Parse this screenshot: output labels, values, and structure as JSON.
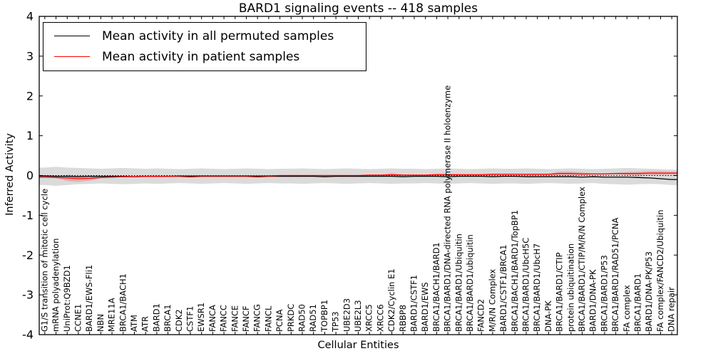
{
  "chart_data": {
    "type": "line",
    "title": "BARD1 signaling events -- 418 samples",
    "xlabel": "Cellular Entities",
    "ylabel": "Inferred Activity",
    "ylim": [
      -4,
      4
    ],
    "yticks": [
      4,
      3,
      2,
      1,
      0,
      -1,
      -2,
      -3,
      -4
    ],
    "grid": false,
    "zero_line": {
      "style": "dotted",
      "color": "#000000",
      "y": 0
    },
    "legend": {
      "position": "upper left",
      "entries": [
        {
          "label": "Mean activity in all permuted samples",
          "color": "#000000"
        },
        {
          "label": "Mean activity in patient samples",
          "color": "#ff0000"
        }
      ]
    },
    "categories": [
      "G1/S transition of mitotic cell cycle",
      "mRNA polyadenylation",
      "UniProt:Q9BZD1",
      "CCNE1",
      "BARD1/EWS-Fli1",
      "NBN",
      "MRE11A",
      "BRCA1/BACH1",
      "ATM",
      "ATR",
      "BARD1",
      "BRCA1",
      "CDK2",
      "CSTF1",
      "EWSR1",
      "FANCA",
      "FANCC",
      "FANCE",
      "FANCF",
      "FANCG",
      "FANCL",
      "PCNA",
      "PRKDC",
      "RAD50",
      "RAD51",
      "TOPBP1",
      "TP53",
      "UBE2D3",
      "UBE2L3",
      "XRCC5",
      "XRCC6",
      "CDK2/Cyclin E1",
      "RBBP8",
      "BARD1/CSTF1",
      "BARD1/EWS",
      "BRCA1/BACH1/BARD1",
      "BRCA1/BARD1/DNA-directed RNA polymerase II holoenzyme",
      "BRCA1/BARD1/Ubiquitin",
      "BRCA1/BARD1/ubiquitin",
      "FANCD2",
      "M/R/N Complex",
      "BARD1/CSTF1/BRCA1",
      "BRCA1/BACH1/BARD1/TopBP1",
      "BRCA1/BARD1/UbcH5C",
      "BRCA1/BARD1/UbcH7",
      "DNA-PK",
      "BRCA1/BARD1/CTIP",
      "protein ubiquitination",
      "BRCA1/BARD1/CTIP/M/R/N Complex",
      "BARD1/DNA-PK",
      "BRCA1/BARD1/P53",
      "BRCA1/BARD1/RAD51/PCNA",
      "FA complex",
      "BRCA1/BARD1",
      "BARD1/DNA-PK/P53",
      "FA complex/FANCD2/Ubiquitin",
      "DNA repair"
    ],
    "series": [
      {
        "name": "Mean activity in all permuted samples",
        "color": "#000000",
        "values": [
          -0.01,
          -0.02,
          -0.02,
          -0.03,
          -0.02,
          -0.02,
          -0.02,
          -0.02,
          -0.03,
          -0.02,
          -0.02,
          -0.02,
          -0.02,
          -0.03,
          -0.02,
          -0.02,
          -0.02,
          -0.02,
          -0.02,
          -0.03,
          -0.02,
          -0.02,
          -0.02,
          -0.02,
          -0.02,
          -0.03,
          -0.02,
          -0.02,
          -0.02,
          -0.02,
          -0.02,
          -0.02,
          -0.03,
          -0.02,
          -0.02,
          -0.02,
          -0.03,
          -0.02,
          -0.02,
          -0.02,
          -0.03,
          -0.02,
          -0.02,
          -0.03,
          -0.03,
          -0.03,
          -0.03,
          -0.03,
          -0.04,
          -0.03,
          -0.04,
          -0.04,
          -0.04,
          -0.05,
          -0.06,
          -0.08,
          -0.1
        ]
      },
      {
        "name": "Mean activity in patient samples",
        "color": "#ff0000",
        "values": [
          -0.04,
          -0.05,
          -0.06,
          -0.08,
          -0.07,
          -0.05,
          -0.04,
          -0.03,
          -0.03,
          -0.02,
          -0.02,
          -0.02,
          -0.01,
          -0.01,
          -0.01,
          -0.01,
          -0.01,
          -0.01,
          -0.01,
          -0.01,
          -0.01,
          0.0,
          0.0,
          0.0,
          0.0,
          0.0,
          0.0,
          0.0,
          0.0,
          0.01,
          0.01,
          0.02,
          0.01,
          0.01,
          0.01,
          0.02,
          0.02,
          0.02,
          0.02,
          0.02,
          0.03,
          0.03,
          0.03,
          0.03,
          0.03,
          0.03,
          0.05,
          0.05,
          0.04,
          0.04,
          0.04,
          0.05,
          0.05,
          0.05,
          0.06,
          0.06,
          0.06
        ]
      }
    ],
    "bands": [
      {
        "name": "permuted-samples-range",
        "color": "#999999",
        "opacity": 0.35,
        "upper": [
          0.2,
          0.22,
          0.2,
          0.19,
          0.18,
          0.17,
          0.18,
          0.19,
          0.18,
          0.17,
          0.18,
          0.17,
          0.16,
          0.17,
          0.18,
          0.17,
          0.16,
          0.17,
          0.18,
          0.17,
          0.16,
          0.17,
          0.17,
          0.18,
          0.17,
          0.16,
          0.17,
          0.18,
          0.17,
          0.16,
          0.17,
          0.18,
          0.17,
          0.17,
          0.16,
          0.17,
          0.18,
          0.17,
          0.16,
          0.17,
          0.18,
          0.17,
          0.17,
          0.18,
          0.17,
          0.16,
          0.17,
          0.18,
          0.17,
          0.16,
          0.17,
          0.18,
          0.19,
          0.18,
          0.17,
          0.16,
          0.15
        ],
        "lower": [
          -0.24,
          -0.26,
          -0.24,
          -0.22,
          -0.21,
          -0.2,
          -0.21,
          -0.22,
          -0.21,
          -0.2,
          -0.21,
          -0.2,
          -0.19,
          -0.2,
          -0.21,
          -0.2,
          -0.19,
          -0.2,
          -0.21,
          -0.2,
          -0.19,
          -0.2,
          -0.2,
          -0.21,
          -0.2,
          -0.19,
          -0.2,
          -0.21,
          -0.2,
          -0.19,
          -0.2,
          -0.21,
          -0.2,
          -0.2,
          -0.19,
          -0.2,
          -0.21,
          -0.2,
          -0.19,
          -0.2,
          -0.21,
          -0.2,
          -0.2,
          -0.21,
          -0.2,
          -0.19,
          -0.2,
          -0.21,
          -0.2,
          -0.19,
          -0.21,
          -0.22,
          -0.23,
          -0.22,
          -0.21,
          -0.22,
          -0.24
        ]
      },
      {
        "name": "patient-samples-range",
        "color": "#ff0000",
        "opacity": 0.18,
        "upper": [
          -0.025,
          -0.035,
          0.02,
          0.0,
          -0.01,
          -0.035,
          -0.025,
          -0.015,
          -0.015,
          -0.005,
          -0.005,
          -0.005,
          0.005,
          0.005,
          0.005,
          0.005,
          0.005,
          0.005,
          0.005,
          0.005,
          0.005,
          0.015,
          0.015,
          0.015,
          0.015,
          0.015,
          0.015,
          0.015,
          0.015,
          0.025,
          0.025,
          0.06,
          0.025,
          0.025,
          0.025,
          0.05,
          0.05,
          0.035,
          0.035,
          0.035,
          0.05,
          0.045,
          0.045,
          0.045,
          0.045,
          0.045,
          0.1,
          0.1,
          0.08,
          0.055,
          0.055,
          0.065,
          0.09,
          0.1,
          0.11,
          0.11,
          0.1
        ],
        "lower": [
          -0.055,
          -0.065,
          -0.14,
          -0.16,
          -0.13,
          -0.065,
          -0.055,
          -0.045,
          -0.045,
          -0.035,
          -0.035,
          -0.035,
          -0.025,
          -0.025,
          -0.025,
          -0.025,
          -0.025,
          -0.025,
          -0.025,
          -0.025,
          -0.025,
          -0.015,
          -0.015,
          -0.015,
          -0.015,
          -0.015,
          -0.015,
          -0.015,
          -0.015,
          -0.005,
          -0.005,
          -0.02,
          -0.005,
          -0.005,
          -0.005,
          -0.01,
          -0.01,
          0.005,
          0.005,
          0.005,
          0.01,
          0.015,
          0.015,
          0.015,
          0.015,
          0.015,
          0.0,
          0.0,
          0.0,
          0.025,
          0.025,
          0.035,
          0.01,
          0.0,
          0.01,
          0.01,
          0.02
        ]
      }
    ]
  }
}
